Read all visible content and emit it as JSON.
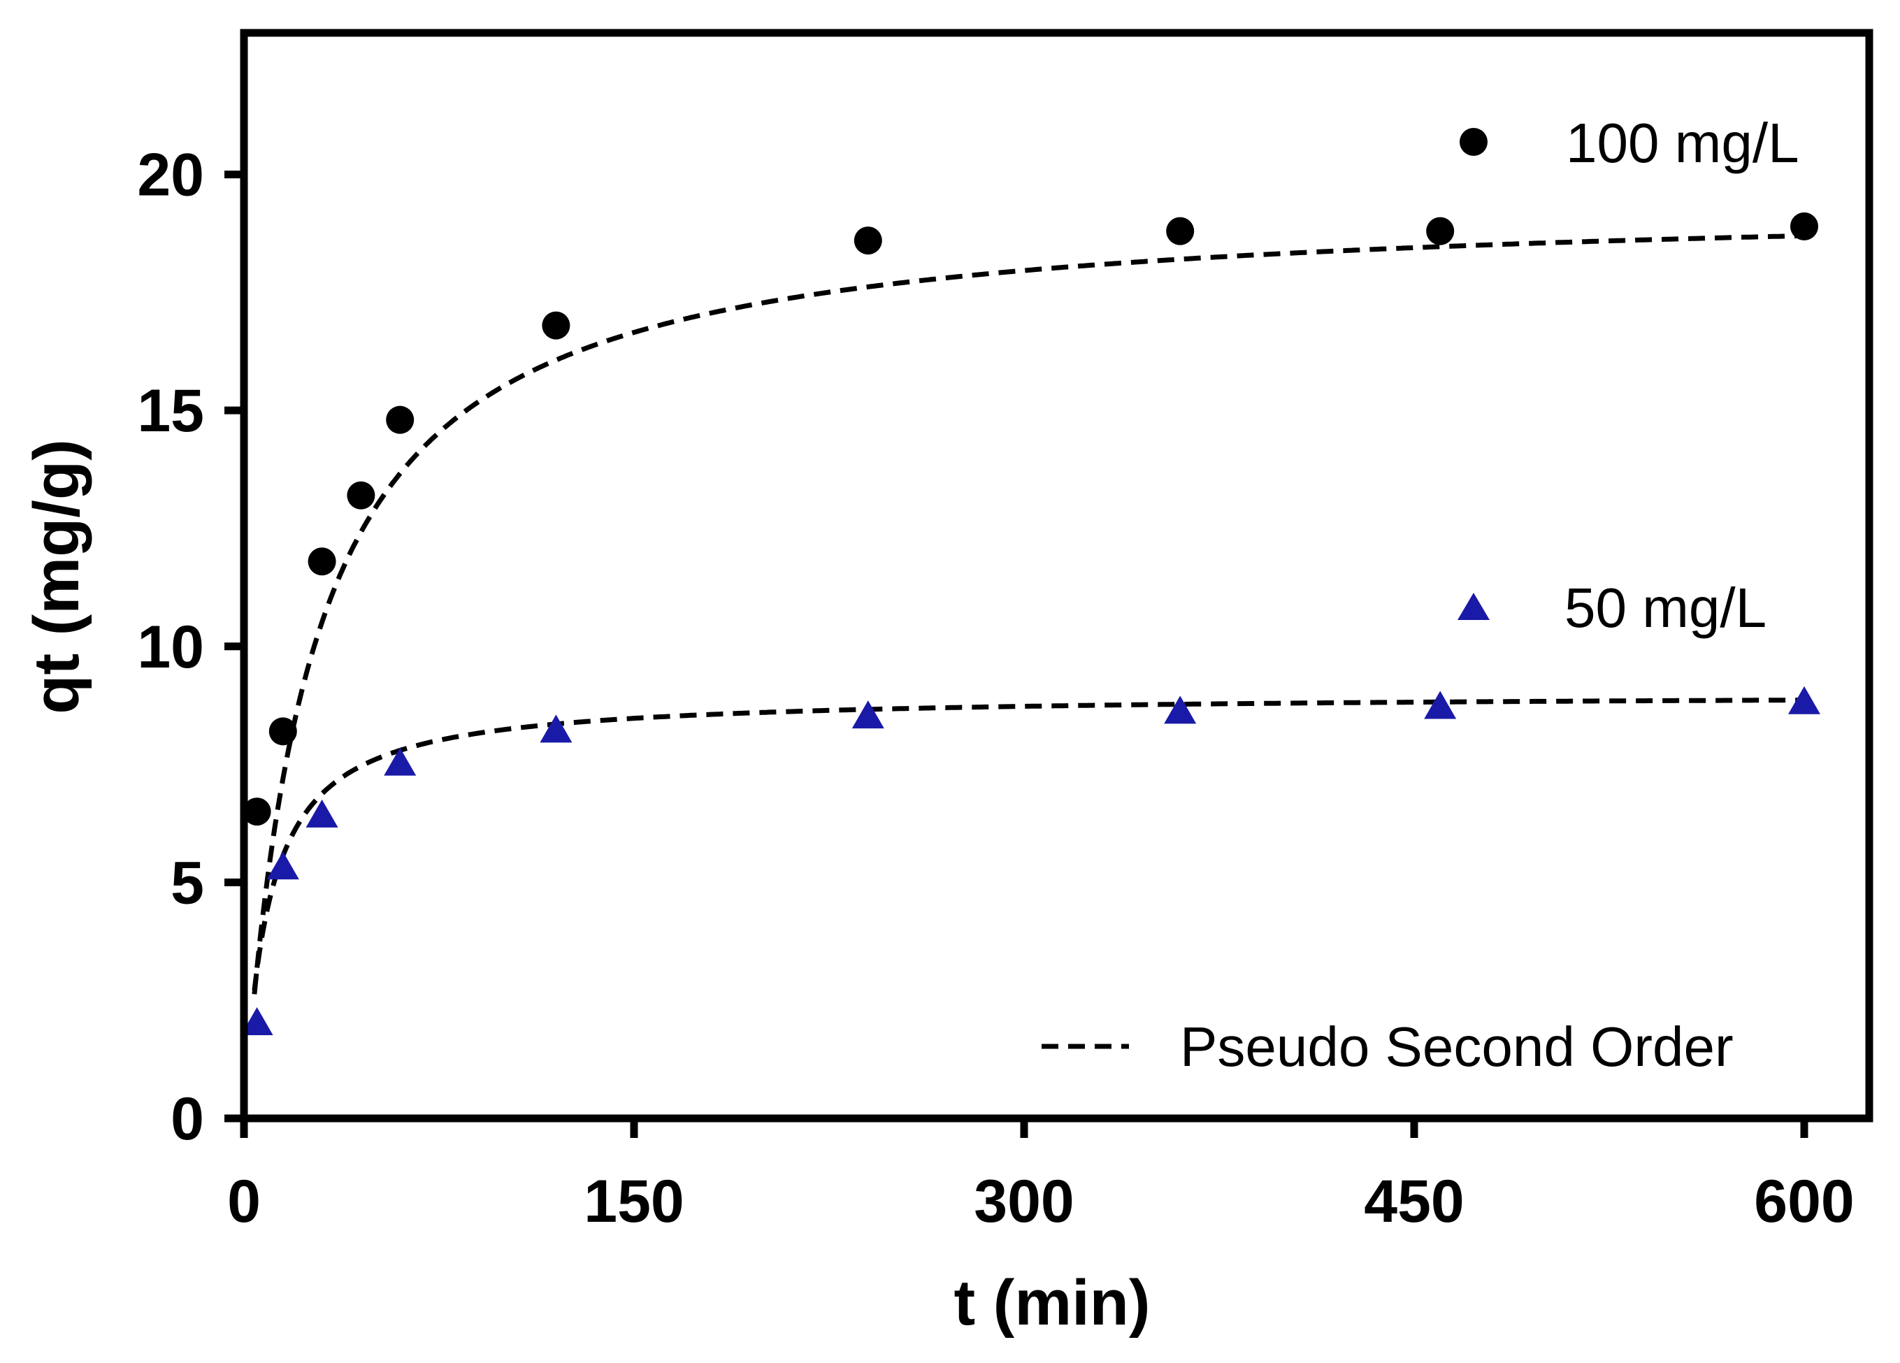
{
  "chart_data": {
    "type": "scatter",
    "title": "",
    "xlabel": "t (min)",
    "ylabel": "qt (mg/g)",
    "xlim": [
      0,
      625
    ],
    "ylim": [
      0,
      23
    ],
    "xticks": [
      0,
      150,
      300,
      450,
      600
    ],
    "yticks": [
      0,
      5,
      10,
      15,
      20
    ],
    "grid": false,
    "legend_position": "right",
    "series": [
      {
        "name": "100 mg/L",
        "marker": "circle",
        "color": "#000000",
        "x": [
          5,
          15,
          30,
          45,
          60,
          120,
          240,
          360,
          460,
          600
        ],
        "y": [
          6.5,
          8.2,
          11.8,
          13.2,
          14.8,
          16.8,
          18.6,
          18.8,
          18.8,
          18.9
        ]
      },
      {
        "name": "50 mg/L",
        "marker": "triangle",
        "color": "#1a1aa8",
        "x": [
          5,
          15,
          30,
          60,
          120,
          240,
          360,
          460,
          600
        ],
        "y": [
          2.0,
          5.3,
          6.4,
          7.5,
          8.2,
          8.5,
          8.6,
          8.7,
          8.8
        ]
      }
    ],
    "fits": [
      {
        "name": "Pseudo Second Order",
        "series": "100 mg/L",
        "qe": 19.5,
        "k2": 0.002,
        "t_range": [
          4,
          600
        ]
      },
      {
        "name": "Pseudo Second Order",
        "series": "50 mg/L",
        "qe": 9.0,
        "k2": 0.012,
        "t_range": [
          4,
          600
        ]
      }
    ],
    "legend": [
      "100 mg/L",
      "50 mg/L",
      "Pseudo Second Order"
    ]
  }
}
